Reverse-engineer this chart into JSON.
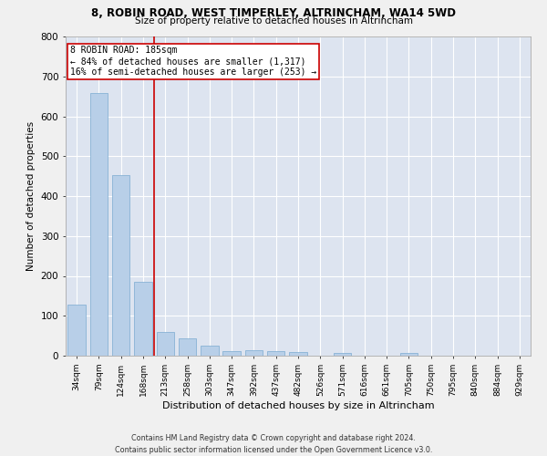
{
  "title": "8, ROBIN ROAD, WEST TIMPERLEY, ALTRINCHAM, WA14 5WD",
  "subtitle": "Size of property relative to detached houses in Altrincham",
  "xlabel": "Distribution of detached houses by size in Altrincham",
  "ylabel": "Number of detached properties",
  "bar_color": "#b8cfe8",
  "bar_edge_color": "#7aaad0",
  "background_color": "#dde4f0",
  "grid_color": "#ffffff",
  "categories": [
    "34sqm",
    "79sqm",
    "124sqm",
    "168sqm",
    "213sqm",
    "258sqm",
    "303sqm",
    "347sqm",
    "392sqm",
    "437sqm",
    "482sqm",
    "526sqm",
    "571sqm",
    "616sqm",
    "661sqm",
    "705sqm",
    "750sqm",
    "795sqm",
    "840sqm",
    "884sqm",
    "929sqm"
  ],
  "values": [
    128,
    658,
    452,
    185,
    60,
    43,
    25,
    12,
    13,
    12,
    10,
    0,
    8,
    0,
    0,
    8,
    0,
    0,
    0,
    0,
    0
  ],
  "ylim": [
    0,
    800
  ],
  "yticks": [
    0,
    100,
    200,
    300,
    400,
    500,
    600,
    700,
    800
  ],
  "vline_x": 3.5,
  "vline_color": "#cc0000",
  "annotation_text": "8 ROBIN ROAD: 185sqm\n← 84% of detached houses are smaller (1,317)\n16% of semi-detached houses are larger (253) →",
  "annotation_box_color": "#ffffff",
  "annotation_box_edge": "#cc0000",
  "footer_line1": "Contains HM Land Registry data © Crown copyright and database right 2024.",
  "footer_line2": "Contains public sector information licensed under the Open Government Licence v3.0.",
  "fig_width": 6.0,
  "fig_height": 5.0,
  "dpi": 100
}
